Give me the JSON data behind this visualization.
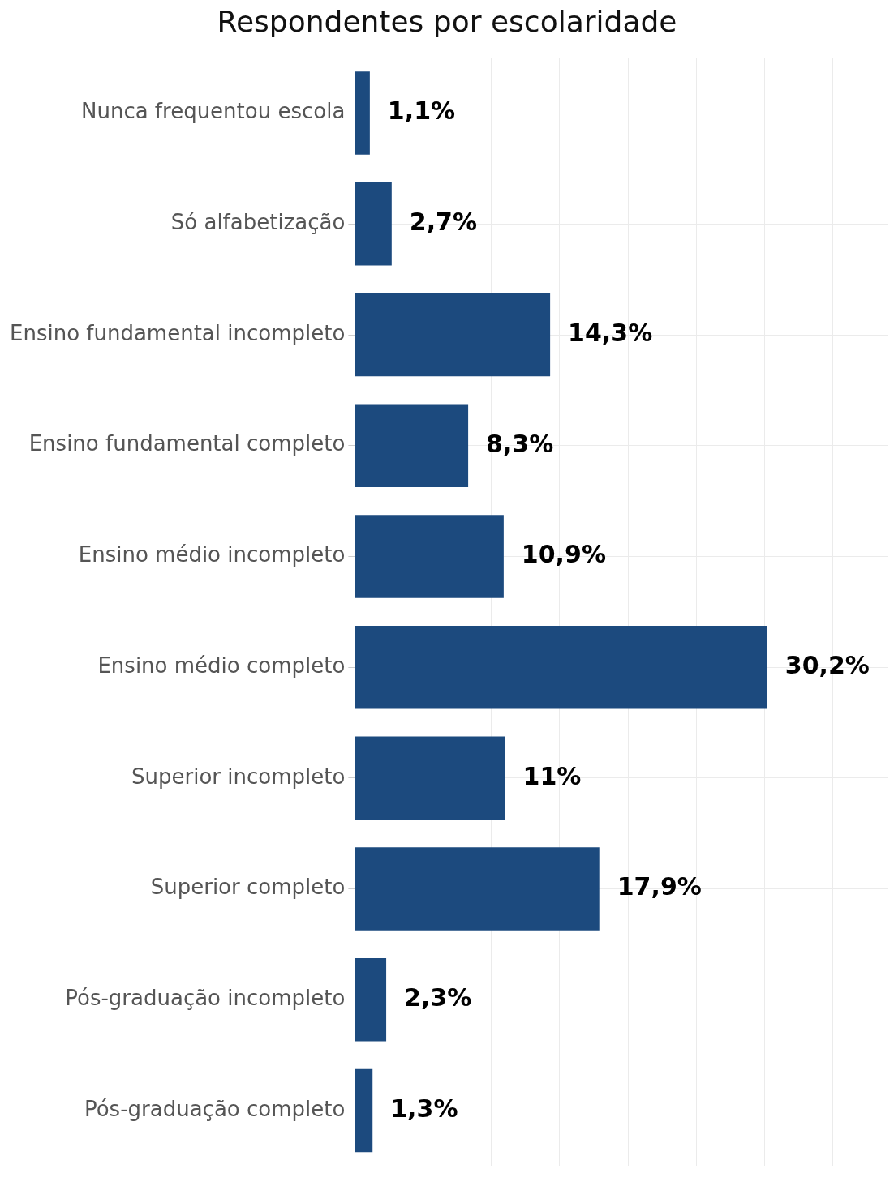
{
  "chart_data": {
    "type": "bar",
    "orientation": "horizontal",
    "title": "Respondentes por escolaridade",
    "categories": [
      "Nunca frequentou escola",
      "Só alfabetização",
      "Ensino fundamental incompleto",
      "Ensino fundamental completo",
      "Ensino médio incompleto",
      "Ensino médio completo",
      "Superior incompleto",
      "Superior completo",
      "Pós-graduação incompleto",
      "Pós-graduação completo"
    ],
    "values": [
      1.1,
      2.7,
      14.3,
      8.3,
      10.9,
      30.2,
      11,
      17.9,
      2.3,
      1.3
    ],
    "value_labels": [
      "1,1%",
      "2,7%",
      "14,3%",
      "8,3%",
      "10,9%",
      "30,2%",
      "11%",
      "17,9%",
      "2,3%",
      "1,3%"
    ],
    "color": "#1c4a7e",
    "xlim": [
      0,
      39
    ],
    "xticks": [
      {
        "value": 0,
        "label": null
      },
      {
        "value": 5,
        "label": null
      },
      {
        "value": 10,
        "label": null
      },
      {
        "value": 15,
        "label": null
      },
      {
        "value": 20,
        "label": null
      },
      {
        "value": 25,
        "label": null
      },
      {
        "value": 30,
        "label": null
      },
      {
        "value": 35,
        "label": null
      }
    ],
    "tick_labels": "y",
    "grid": true,
    "legend": false
  }
}
